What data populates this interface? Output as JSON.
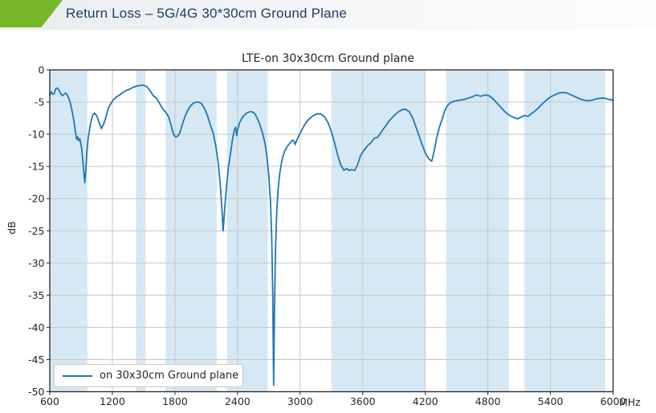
{
  "header": {
    "title": "Return Loss – 5G/4G 30*30cm Ground Plane",
    "accent_color": "#76b82a",
    "title_color": "#1f3b66"
  },
  "chart_data": {
    "type": "line",
    "title": "LTE-on 30x30cm Ground plane",
    "ylabel": "dB",
    "x_unit": "MHz",
    "xlim": [
      600,
      6000
    ],
    "ylim": [
      -50,
      0
    ],
    "x_ticks": [
      600,
      1200,
      1800,
      2400,
      3000,
      3600,
      4200,
      4800,
      5400,
      6000
    ],
    "y_ticks": [
      0,
      -5,
      -10,
      -15,
      -20,
      -25,
      -30,
      -35,
      -40,
      -45,
      -50
    ],
    "grid": true,
    "grid_color": "#c6c6c6",
    "axis_color": "#262626",
    "line_color": "#1f77b4",
    "band_color": "#d6e8f3",
    "legend": {
      "label": "on 30x30cm Ground plane",
      "position": "lower left"
    },
    "shaded_bands_mhz": [
      [
        600,
        960
      ],
      [
        1427,
        1518
      ],
      [
        1710,
        2200
      ],
      [
        2300,
        2690
      ],
      [
        3300,
        4200
      ],
      [
        4400,
        5000
      ],
      [
        5150,
        5925
      ]
    ],
    "series": [
      {
        "name": "on 30x30cm Ground plane",
        "points": [
          [
            600,
            -3.9
          ],
          [
            615,
            -3.4
          ],
          [
            628,
            -3.8
          ],
          [
            642,
            -3.7
          ],
          [
            658,
            -2.9
          ],
          [
            672,
            -2.8
          ],
          [
            688,
            -3.1
          ],
          [
            704,
            -3.7
          ],
          [
            720,
            -4.0
          ],
          [
            736,
            -3.8
          ],
          [
            752,
            -3.6
          ],
          [
            766,
            -3.9
          ],
          [
            780,
            -4.3
          ],
          [
            795,
            -5.0
          ],
          [
            810,
            -6.1
          ],
          [
            828,
            -7.6
          ],
          [
            845,
            -9.5
          ],
          [
            858,
            -10.8
          ],
          [
            868,
            -10.4
          ],
          [
            878,
            -11.0
          ],
          [
            889,
            -10.7
          ],
          [
            904,
            -12.0
          ],
          [
            917,
            -14.1
          ],
          [
            928,
            -16.2
          ],
          [
            936,
            -17.5
          ],
          [
            946,
            -15.6
          ],
          [
            956,
            -12.8
          ],
          [
            968,
            -10.6
          ],
          [
            982,
            -9.2
          ],
          [
            996,
            -8.0
          ],
          [
            1012,
            -7.0
          ],
          [
            1030,
            -6.7
          ],
          [
            1052,
            -7.2
          ],
          [
            1072,
            -8.1
          ],
          [
            1095,
            -9.1
          ],
          [
            1115,
            -8.5
          ],
          [
            1136,
            -7.5
          ],
          [
            1160,
            -6.0
          ],
          [
            1186,
            -5.2
          ],
          [
            1212,
            -4.6
          ],
          [
            1240,
            -4.2
          ],
          [
            1270,
            -3.9
          ],
          [
            1300,
            -3.5
          ],
          [
            1332,
            -3.2
          ],
          [
            1365,
            -3.0
          ],
          [
            1400,
            -2.7
          ],
          [
            1435,
            -2.5
          ],
          [
            1468,
            -2.4
          ],
          [
            1500,
            -2.4
          ],
          [
            1530,
            -2.6
          ],
          [
            1560,
            -3.2
          ],
          [
            1592,
            -4.0
          ],
          [
            1622,
            -4.4
          ],
          [
            1652,
            -5.2
          ],
          [
            1682,
            -6.0
          ],
          [
            1712,
            -6.6
          ],
          [
            1740,
            -7.3
          ],
          [
            1765,
            -8.7
          ],
          [
            1786,
            -10.0
          ],
          [
            1806,
            -10.4
          ],
          [
            1826,
            -10.3
          ],
          [
            1846,
            -9.8
          ],
          [
            1870,
            -8.5
          ],
          [
            1895,
            -7.3
          ],
          [
            1922,
            -6.3
          ],
          [
            1948,
            -5.6
          ],
          [
            1974,
            -5.2
          ],
          [
            2000,
            -5.0
          ],
          [
            2026,
            -5.0
          ],
          [
            2052,
            -5.2
          ],
          [
            2082,
            -5.9
          ],
          [
            2112,
            -7.1
          ],
          [
            2140,
            -8.6
          ],
          [
            2166,
            -9.8
          ],
          [
            2192,
            -11.8
          ],
          [
            2214,
            -14.4
          ],
          [
            2234,
            -17.8
          ],
          [
            2250,
            -21.5
          ],
          [
            2262,
            -25.0
          ],
          [
            2276,
            -21.8
          ],
          [
            2292,
            -18.6
          ],
          [
            2310,
            -15.5
          ],
          [
            2330,
            -13.3
          ],
          [
            2352,
            -10.8
          ],
          [
            2368,
            -9.4
          ],
          [
            2382,
            -8.9
          ],
          [
            2391,
            -10.2
          ],
          [
            2402,
            -9.2
          ],
          [
            2420,
            -8.2
          ],
          [
            2442,
            -7.5
          ],
          [
            2465,
            -7.0
          ],
          [
            2490,
            -6.7
          ],
          [
            2515,
            -6.5
          ],
          [
            2540,
            -6.5
          ],
          [
            2566,
            -6.8
          ],
          [
            2592,
            -7.6
          ],
          [
            2616,
            -8.6
          ],
          [
            2640,
            -9.8
          ],
          [
            2662,
            -11.3
          ],
          [
            2682,
            -13.5
          ],
          [
            2700,
            -16.5
          ],
          [
            2716,
            -20.5
          ],
          [
            2728,
            -26
          ],
          [
            2738,
            -35
          ],
          [
            2746,
            -49
          ],
          [
            2754,
            -38
          ],
          [
            2764,
            -28
          ],
          [
            2776,
            -22
          ],
          [
            2790,
            -18.3
          ],
          [
            2806,
            -15.9
          ],
          [
            2826,
            -14.0
          ],
          [
            2850,
            -12.7
          ],
          [
            2876,
            -11.9
          ],
          [
            2902,
            -11.4
          ],
          [
            2926,
            -10.9
          ],
          [
            2941,
            -11.1
          ],
          [
            2951,
            -11.6
          ],
          [
            2963,
            -11.1
          ],
          [
            2986,
            -10.3
          ],
          [
            3012,
            -9.5
          ],
          [
            3040,
            -8.6
          ],
          [
            3070,
            -7.9
          ],
          [
            3102,
            -7.4
          ],
          [
            3136,
            -7.0
          ],
          [
            3170,
            -6.8
          ],
          [
            3206,
            -6.9
          ],
          [
            3240,
            -7.4
          ],
          [
            3270,
            -8.3
          ],
          [
            3300,
            -9.6
          ],
          [
            3330,
            -11.3
          ],
          [
            3360,
            -13.2
          ],
          [
            3390,
            -14.8
          ],
          [
            3420,
            -15.6
          ],
          [
            3448,
            -15.3
          ],
          [
            3464,
            -15.6
          ],
          [
            3494,
            -15.5
          ],
          [
            3524,
            -15.6
          ],
          [
            3550,
            -14.8
          ],
          [
            3580,
            -13.3
          ],
          [
            3612,
            -12.5
          ],
          [
            3645,
            -11.8
          ],
          [
            3680,
            -11.3
          ],
          [
            3712,
            -10.6
          ],
          [
            3742,
            -10.5
          ],
          [
            3776,
            -9.7
          ],
          [
            3815,
            -8.8
          ],
          [
            3855,
            -7.9
          ],
          [
            3895,
            -7.2
          ],
          [
            3935,
            -6.6
          ],
          [
            3975,
            -6.2
          ],
          [
            4012,
            -6.1
          ],
          [
            4046,
            -6.5
          ],
          [
            4080,
            -7.5
          ],
          [
            4120,
            -9.3
          ],
          [
            4160,
            -11.2
          ],
          [
            4200,
            -12.9
          ],
          [
            4232,
            -13.8
          ],
          [
            4262,
            -14.2
          ],
          [
            4285,
            -12.6
          ],
          [
            4310,
            -10.5
          ],
          [
            4335,
            -8.9
          ],
          [
            4360,
            -7.7
          ],
          [
            4385,
            -6.4
          ],
          [
            4410,
            -5.6
          ],
          [
            4440,
            -5.1
          ],
          [
            4470,
            -4.9
          ],
          [
            4500,
            -4.8
          ],
          [
            4535,
            -4.7
          ],
          [
            4572,
            -4.6
          ],
          [
            4612,
            -4.4
          ],
          [
            4650,
            -4.2
          ],
          [
            4690,
            -3.9
          ],
          [
            4730,
            -4.1
          ],
          [
            4770,
            -3.9
          ],
          [
            4810,
            -4.0
          ],
          [
            4850,
            -4.5
          ],
          [
            4890,
            -5.2
          ],
          [
            4930,
            -5.9
          ],
          [
            4970,
            -6.6
          ],
          [
            5010,
            -7.1
          ],
          [
            5050,
            -7.4
          ],
          [
            5086,
            -7.6
          ],
          [
            5120,
            -7.3
          ],
          [
            5154,
            -7.1
          ],
          [
            5186,
            -7.2
          ],
          [
            5216,
            -6.8
          ],
          [
            5250,
            -6.4
          ],
          [
            5285,
            -5.9
          ],
          [
            5320,
            -5.3
          ],
          [
            5360,
            -4.7
          ],
          [
            5400,
            -4.2
          ],
          [
            5440,
            -3.9
          ],
          [
            5480,
            -3.6
          ],
          [
            5520,
            -3.5
          ],
          [
            5560,
            -3.6
          ],
          [
            5600,
            -3.9
          ],
          [
            5640,
            -4.2
          ],
          [
            5680,
            -4.5
          ],
          [
            5720,
            -4.7
          ],
          [
            5760,
            -4.8
          ],
          [
            5800,
            -4.7
          ],
          [
            5840,
            -4.5
          ],
          [
            5880,
            -4.4
          ],
          [
            5920,
            -4.4
          ],
          [
            5960,
            -4.6
          ],
          [
            6000,
            -4.7
          ]
        ]
      }
    ]
  }
}
